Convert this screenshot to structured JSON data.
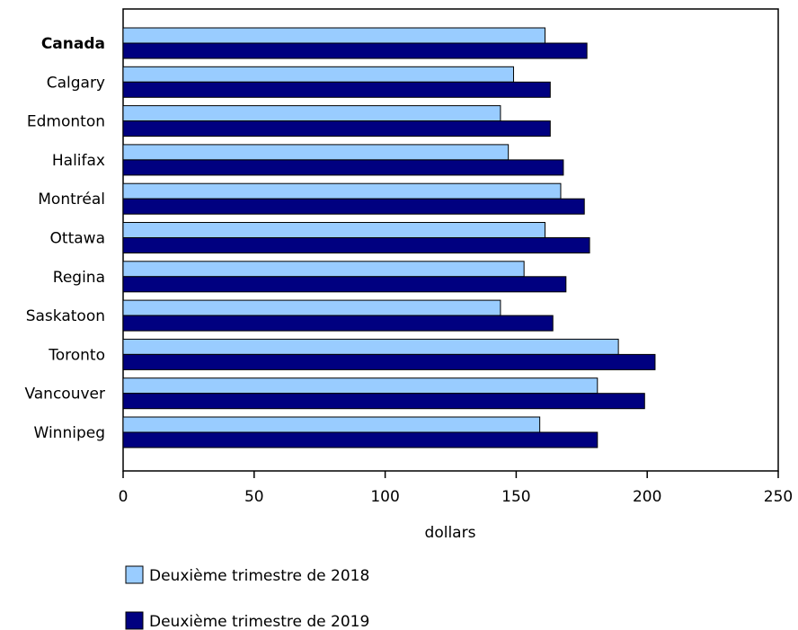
{
  "chart_data": {
    "type": "bar",
    "orientation": "horizontal",
    "categories": [
      "Canada",
      "Calgary",
      "Edmonton",
      "Halifax",
      "Montréal",
      "Ottawa",
      "Regina",
      "Saskatoon",
      "Toronto",
      "Vancouver",
      "Winnipeg"
    ],
    "emphasized_category": "Canada",
    "series": [
      {
        "name": "Deuxième trimestre de 2018",
        "color": "#99ccff",
        "values": [
          161,
          149,
          144,
          147,
          167,
          161,
          153,
          144,
          189,
          181,
          159
        ]
      },
      {
        "name": "Deuxième trimestre de 2019",
        "color": "#000080",
        "values": [
          177,
          163,
          163,
          168,
          176,
          178,
          169,
          164,
          203,
          199,
          181
        ]
      }
    ],
    "xlabel": "dollars",
    "ylabel": "",
    "title": "",
    "xlim": [
      0,
      250
    ],
    "xticks": [
      0,
      50,
      100,
      150,
      200,
      250
    ],
    "grid": false,
    "legend_position": "bottom"
  }
}
